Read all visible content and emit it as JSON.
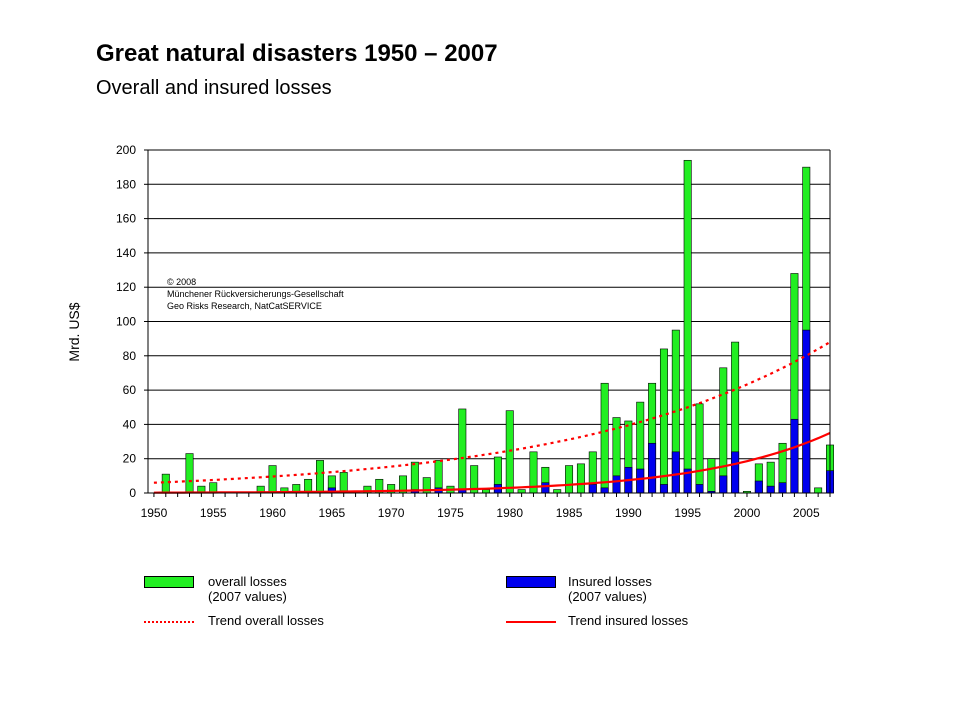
{
  "title": "Great natural disasters 1950 – 2007",
  "subtitle": "Overall and insured losses",
  "copyright": [
    "© 2008",
    "Münchener Rückversicherungs-Gesellschaft",
    "Geo Risks Research, NatCatSERVICE"
  ],
  "legend": {
    "overall": [
      "overall losses",
      "(2007 values)"
    ],
    "insured": [
      "Insured losses",
      "(2007 values)"
    ],
    "trend_overall": "Trend overall losses",
    "trend_insured": "Trend insured losses"
  },
  "colors": {
    "overall": "#22ee22",
    "insured": "#0000ee",
    "trend": "#ff0000"
  },
  "chart_data": {
    "type": "bar",
    "ylabel": "Mrd. US$",
    "ylim": [
      0,
      200
    ],
    "yticks": [
      0,
      20,
      40,
      60,
      80,
      100,
      120,
      140,
      160,
      180,
      200
    ],
    "xlim": [
      1950,
      2007
    ],
    "xticks": [
      1950,
      1955,
      1960,
      1965,
      1970,
      1975,
      1980,
      1985,
      1990,
      1995,
      2000,
      2005
    ],
    "grid": true,
    "x": [
      1950,
      1951,
      1952,
      1953,
      1954,
      1955,
      1956,
      1957,
      1958,
      1959,
      1960,
      1961,
      1962,
      1963,
      1964,
      1965,
      1966,
      1967,
      1968,
      1969,
      1970,
      1971,
      1972,
      1973,
      1974,
      1975,
      1976,
      1977,
      1978,
      1979,
      1980,
      1981,
      1982,
      1983,
      1984,
      1985,
      1986,
      1987,
      1988,
      1989,
      1990,
      1991,
      1992,
      1993,
      1994,
      1995,
      1996,
      1997,
      1998,
      1999,
      2000,
      2001,
      2002,
      2003,
      2004,
      2005,
      2006,
      2007
    ],
    "series": [
      {
        "name": "overall losses (2007 values)",
        "values": [
          0,
          11,
          0,
          23,
          4,
          6,
          0,
          0,
          0,
          4,
          16,
          3,
          5,
          8,
          19,
          10,
          12,
          1,
          4,
          8,
          5,
          10,
          18,
          9,
          19,
          4,
          49,
          16,
          2,
          21,
          48,
          2,
          24,
          15,
          2,
          16,
          17,
          24,
          64,
          44,
          42,
          53,
          64,
          84,
          95,
          194,
          52,
          20,
          73,
          88,
          1,
          17,
          18,
          29,
          128,
          190,
          3,
          28
        ]
      },
      {
        "name": "Insured losses (2007 values)",
        "values": [
          0,
          0,
          0,
          0,
          0,
          0,
          0,
          0,
          0,
          0,
          0,
          0,
          0,
          0,
          0,
          3,
          0,
          0,
          0,
          0,
          0,
          0,
          2,
          0,
          3,
          0,
          2,
          0,
          0,
          5,
          0,
          0,
          0,
          6,
          0,
          0,
          0,
          5,
          3,
          10,
          15,
          14,
          29,
          5,
          24,
          14,
          5,
          1,
          10,
          24,
          0,
          7,
          4,
          6,
          43,
          95,
          0,
          13
        ]
      }
    ],
    "trends": [
      {
        "name": "Trend overall losses",
        "style": "dotted",
        "start": [
          1950,
          6
        ],
        "end": [
          2007,
          88
        ],
        "kind": "exponential"
      },
      {
        "name": "Trend insured losses",
        "style": "solid",
        "start": [
          1950,
          0.2
        ],
        "end": [
          2007,
          35
        ],
        "kind": "exponential"
      }
    ]
  }
}
